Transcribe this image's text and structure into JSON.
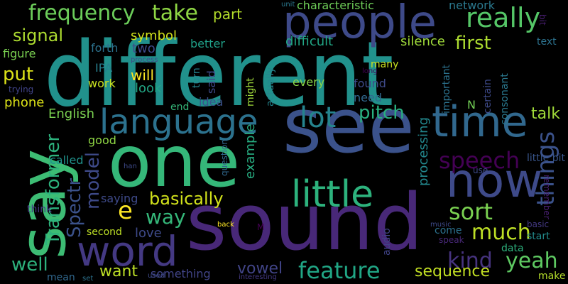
{
  "words": [
    {
      "text": "different",
      "color": "#21918c"
    },
    {
      "text": "see",
      "color": "#3b528b"
    },
    {
      "text": "one",
      "color": "#35b779"
    },
    {
      "text": "sound",
      "color": "#482878"
    },
    {
      "text": "say",
      "color": "#3dbc74"
    },
    {
      "text": "people",
      "color": "#3e4a89"
    },
    {
      "text": "word",
      "color": "#443983"
    },
    {
      "text": "language",
      "color": "#2c728e"
    },
    {
      "text": "time",
      "color": "#31688e"
    },
    {
      "text": "now",
      "color": "#3e4a89"
    },
    {
      "text": "little",
      "color": "#2db27d"
    },
    {
      "text": "frequency",
      "color": "#6ccd5a"
    },
    {
      "text": "take",
      "color": "#8fd744"
    },
    {
      "text": "really",
      "color": "#55c667"
    },
    {
      "text": "lot",
      "color": "#25848e"
    },
    {
      "text": "pitch",
      "color": "#29af7f"
    },
    {
      "text": "things",
      "color": "#3b528b"
    },
    {
      "text": "speech",
      "color": "#440154"
    },
    {
      "text": "sort",
      "color": "#7ad151"
    },
    {
      "text": "kind",
      "color": "#46337e"
    },
    {
      "text": "yeah",
      "color": "#5ec962"
    },
    {
      "text": "much",
      "color": "#bddf26"
    },
    {
      "text": "feature",
      "color": "#21a685"
    },
    {
      "text": "basically",
      "color": "#d2e21b"
    },
    {
      "text": "way",
      "color": "#35b779"
    },
    {
      "text": "model",
      "color": "#3e4a89"
    },
    {
      "text": "e",
      "color": "#fde725"
    },
    {
      "text": "Transformer",
      "color": "#2db27d"
    },
    {
      "text": "Spectr",
      "color": "#3b528b"
    },
    {
      "text": "part",
      "color": "#b5de2b"
    },
    {
      "text": "first",
      "color": "#addc30"
    },
    {
      "text": "signal",
      "color": "#addc30"
    },
    {
      "text": "put",
      "color": "#dde318"
    },
    {
      "text": "well",
      "color": "#2db27d"
    },
    {
      "text": "want",
      "color": "#bddf26"
    },
    {
      "text": "vowel",
      "color": "#414487"
    },
    {
      "text": "sequence",
      "color": "#c2df23"
    },
    {
      "text": "talk",
      "color": "#a0da39"
    },
    {
      "text": "example",
      "color": "#27ad81"
    },
    {
      "text": "processing",
      "color": "#23888e"
    },
    {
      "text": "love",
      "color": "#3e4a89"
    },
    {
      "text": "will",
      "color": "#fde725"
    },
    {
      "text": "look",
      "color": "#22a785"
    },
    {
      "text": "two",
      "color": "#3e4a89"
    },
    {
      "text": "symbol",
      "color": "#d2e21b"
    },
    {
      "text": "better",
      "color": "#1fa088"
    },
    {
      "text": "difficult",
      "color": "#21a685"
    },
    {
      "text": "silence",
      "color": "#9fda3a"
    },
    {
      "text": "characteristic",
      "color": "#6ece58"
    },
    {
      "text": "network",
      "color": "#2a788e"
    },
    {
      "text": "English",
      "color": "#7ad151"
    },
    {
      "text": "phone",
      "color": "#dde318"
    },
    {
      "text": "work",
      "color": "#c8e020"
    },
    {
      "text": "IPA",
      "color": "#277f8e"
    },
    {
      "text": "figure",
      "color": "#7ad151"
    },
    {
      "text": "forth",
      "color": "#2c728e"
    },
    {
      "text": "trying",
      "color": "#404387"
    },
    {
      "text": "called",
      "color": "#20928c"
    },
    {
      "text": "good",
      "color": "#8fd744"
    },
    {
      "text": "saying",
      "color": "#3e4a89"
    },
    {
      "text": "second",
      "color": "#bddf26"
    },
    {
      "text": "think",
      "color": "#443983"
    },
    {
      "text": "mean",
      "color": "#31688e"
    },
    {
      "text": "something",
      "color": "#414487"
    },
    {
      "text": "idea",
      "color": "#3b528b"
    },
    {
      "text": "said",
      "color": "#3e4a89"
    },
    {
      "text": "turn",
      "color": "#25848e"
    },
    {
      "text": "end",
      "color": "#35b779"
    },
    {
      "text": "might",
      "color": "#9fda3a"
    },
    {
      "text": "question",
      "color": "#31688e"
    },
    {
      "text": "actually",
      "color": "#25858e"
    },
    {
      "text": "every",
      "color": "#89d548"
    },
    {
      "text": "found",
      "color": "#3e4a89"
    },
    {
      "text": "need",
      "color": "#31688e"
    },
    {
      "text": "many",
      "color": "#c8e020"
    },
    {
      "text": "important",
      "color": "#2c728e"
    },
    {
      "text": "N",
      "color": "#73d056"
    },
    {
      "text": "certain",
      "color": "#3e4a89"
    },
    {
      "text": "consonant",
      "color": "#2a788e"
    },
    {
      "text": "little bit",
      "color": "#39568c"
    },
    {
      "text": "text",
      "color": "#2c728e"
    },
    {
      "text": "audio",
      "color": "#404387"
    },
    {
      "text": "come",
      "color": "#2c728e"
    },
    {
      "text": "data",
      "color": "#2db27d"
    },
    {
      "text": "start",
      "color": "#228c8d"
    },
    {
      "text": "basic",
      "color": "#443983"
    },
    {
      "text": "remember",
      "color": "#481f70"
    },
    {
      "text": "use",
      "color": "#3e4a89"
    },
    {
      "text": "make",
      "color": "#b5de2b"
    },
    {
      "text": "speak",
      "color": "#482878"
    },
    {
      "text": "music",
      "color": "#3e4a89"
    },
    {
      "text": "M",
      "color": "#440154"
    },
    {
      "text": "back",
      "color": "#fde725"
    },
    {
      "text": "han",
      "color": "#3e4a89"
    },
    {
      "text": "set",
      "color": "#2c728e"
    },
    {
      "text": "used",
      "color": "#3e4a89"
    },
    {
      "text": "interesting",
      "color": "#443983"
    },
    {
      "text": "unit",
      "color": "#2a788e"
    },
    {
      "text": "process",
      "color": "#3e4a89"
    },
    {
      "text": "long",
      "color": "#440154"
    },
    {
      "text": "bit",
      "color": "#481f70"
    }
  ]
}
